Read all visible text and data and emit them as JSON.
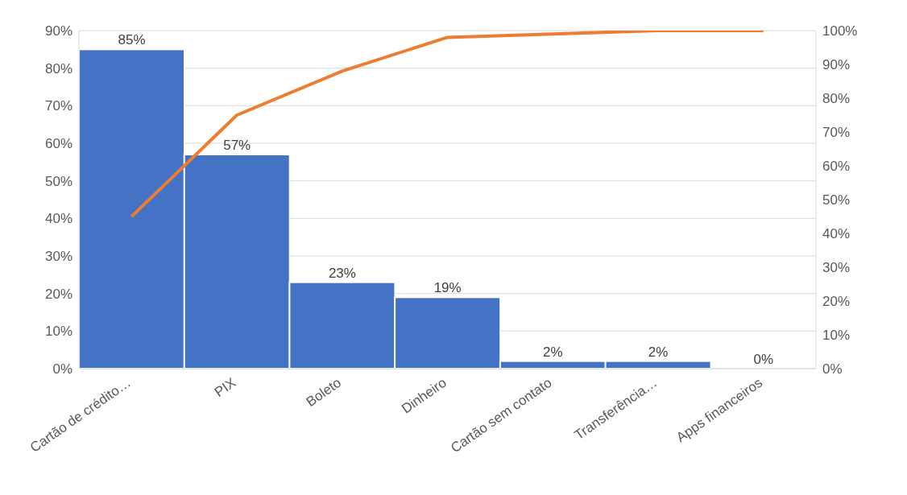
{
  "chart_data": {
    "type": "bar",
    "categories": [
      "Cartão de crédito…",
      "PIX",
      "Boleto",
      "Dinheiro",
      "Cartão sem contato",
      "Transferência…",
      "Apps financeiros"
    ],
    "series": [
      {
        "color": "#4472c4",
        "values": [
          85,
          57,
          23,
          19,
          2,
          2,
          0
        ],
        "value_labels": [
          "85%",
          "57%",
          "23%",
          "19%",
          "2%",
          "2%",
          "0%"
        ]
      },
      {
        "type": "line",
        "axis": "y2",
        "color": "#ed7d31",
        "values": [
          45,
          75,
          88,
          98,
          99,
          100,
          100
        ]
      }
    ],
    "ylim": [
      0,
      90
    ],
    "yticks": [
      {
        "value": 0,
        "label": "0%"
      },
      {
        "value": 10,
        "label": "10%"
      },
      {
        "value": 20,
        "label": "20%"
      },
      {
        "value": 30,
        "label": "30%"
      },
      {
        "value": 40,
        "label": "40%"
      },
      {
        "value": 50,
        "label": "50%"
      },
      {
        "value": 60,
        "label": "60%"
      },
      {
        "value": 70,
        "label": "70%"
      },
      {
        "value": 80,
        "label": "80%"
      },
      {
        "value": 90,
        "label": "90%"
      }
    ],
    "y2lim": [
      0,
      100
    ],
    "y2ticks": [
      {
        "value": 0,
        "label": "0%"
      },
      {
        "value": 10,
        "label": "10%"
      },
      {
        "value": 20,
        "label": "20%"
      },
      {
        "value": 30,
        "label": "30%"
      },
      {
        "value": 40,
        "label": "40%"
      },
      {
        "value": 50,
        "label": "50%"
      },
      {
        "value": 60,
        "label": "60%"
      },
      {
        "value": 70,
        "label": "70%"
      },
      {
        "value": 80,
        "label": "80%"
      },
      {
        "value": 90,
        "label": "90%"
      },
      {
        "value": 100,
        "label": "100%"
      }
    ],
    "grid": "y",
    "marker": "none",
    "line_style": "solid"
  }
}
